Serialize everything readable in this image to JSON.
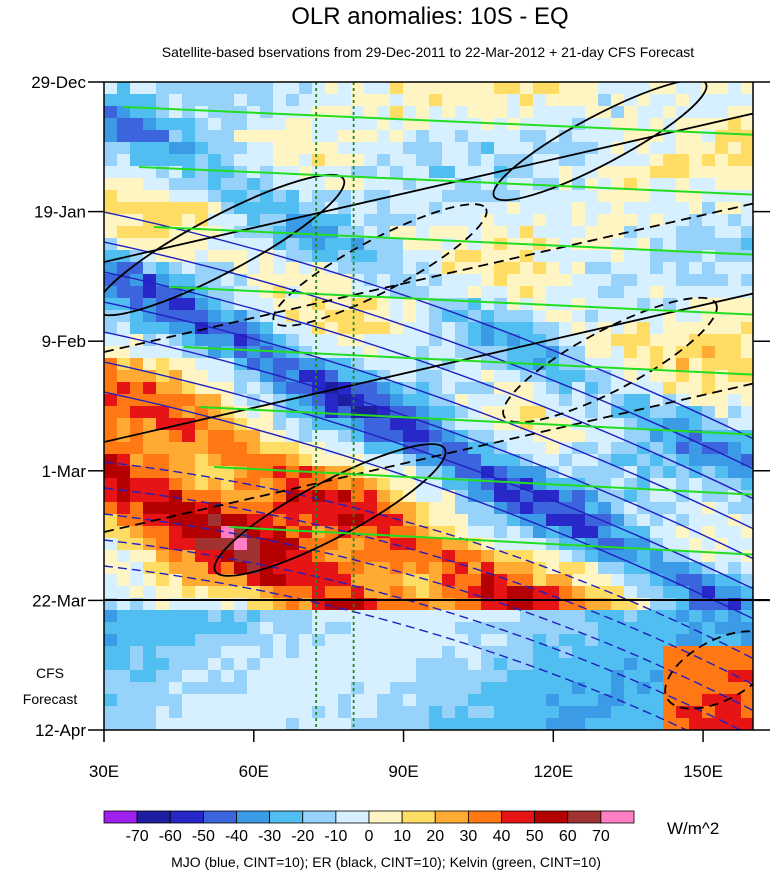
{
  "chart_data": {
    "type": "heatmap",
    "title": "OLR anomalies: 10S - EQ",
    "subtitle": "Satellite-based bservations from 29-Dec-2011 to 22-Mar-2012 + 21-day CFS Forecast",
    "x_ticks": [
      {
        "value": 30,
        "label": "30E"
      },
      {
        "value": 60,
        "label": "60E"
      },
      {
        "value": 90,
        "label": "90E"
      },
      {
        "value": 120,
        "label": "120E"
      },
      {
        "value": 150,
        "label": "150E"
      }
    ],
    "xlim": [
      30,
      160
    ],
    "y_ticks": [
      {
        "value": "2011-12-29",
        "label": "29-Dec"
      },
      {
        "value": "2012-01-19",
        "label": "19-Jan"
      },
      {
        "value": "2012-02-09",
        "label": "9-Feb"
      },
      {
        "value": "2012-03-01",
        "label": "1-Mar"
      },
      {
        "value": "2012-03-22",
        "label": "22-Mar"
      },
      {
        "value": "2012-04-12",
        "label": "12-Apr"
      }
    ],
    "ylim": [
      "2011-12-29",
      "2012-04-12"
    ],
    "forecast_start": "2012-03-22",
    "forecast_label": [
      "CFS",
      "Forecast"
    ],
    "reference_lines_x": [
      72.5,
      80
    ],
    "colorbar": {
      "unit": "W/m^2",
      "labels": [
        "-70",
        "-60",
        "-50",
        "-40",
        "-30",
        "-20",
        "-10",
        "0",
        "10",
        "20",
        "30",
        "40",
        "50",
        "60",
        "70"
      ],
      "colors": [
        "#a020f0",
        "#1e1ea0",
        "#2828c8",
        "#3c64dc",
        "#3c9be6",
        "#50bef0",
        "#96d2fa",
        "#d7f0ff",
        "#fff5c3",
        "#ffdc64",
        "#ffaa32",
        "#ff7814",
        "#e61414",
        "#b40000",
        "#a03232",
        "#ff7dc3"
      ]
    },
    "footer": "MJO (blue, CINT=10); ER (black, CINT=10); Kelvin (green, CINT=10)"
  }
}
